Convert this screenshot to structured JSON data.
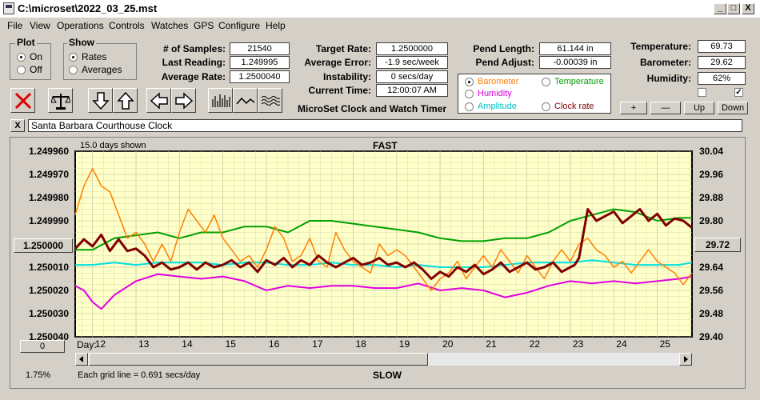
{
  "window": {
    "title": "C:\\microset\\2022_03_25.mst",
    "min": "_",
    "max": "□",
    "close": "X"
  },
  "menu": [
    "File",
    "View",
    "Operations",
    "Controls",
    "Watches",
    "GPS",
    "Configure",
    "Help"
  ],
  "plot_group": {
    "title": "Plot",
    "options": [
      "On",
      "Off"
    ],
    "selected": "On"
  },
  "show_group": {
    "title": "Show",
    "options": [
      "Rates",
      "Averages"
    ],
    "selected": "Rates"
  },
  "stats": {
    "samples_label": "# of Samples:",
    "samples": "21540",
    "last_label": "Last Reading:",
    "last": "1.249995",
    "avg_label": "Average Rate:",
    "avg": "1.2500040",
    "target_label": "Target Rate:",
    "target": "1.2500000",
    "err_label": "Average Error:",
    "err": "-1.9 sec/week",
    "inst_label": "Instability:",
    "inst": "0 secs/day",
    "time_label": "Current Time:",
    "time": "12:00:07 AM",
    "pend_label": "Pend Length:",
    "pend": "61.144 in",
    "adjust_label": "Pend Adjust:",
    "adjust": "-0.00039 in",
    "temp_label": "Temperature:",
    "temp": "69.73",
    "baro_label": "Barometer:",
    "baro": "29.62",
    "hum_label": "Humidity:",
    "hum": "62%"
  },
  "app_title": "MicroSet Clock and Watch Timer",
  "overlay": {
    "options": [
      {
        "label": "Barometer",
        "color": "#ff8000",
        "selected": true
      },
      {
        "label": "Temperature",
        "color": "#00a000",
        "selected": false
      },
      {
        "label": "Humidity",
        "color": "#e000e0",
        "selected": false
      },
      {
        "label": "Clock rate",
        "color": "#800000",
        "selected": false
      },
      {
        "label": "Amplitude",
        "color": "#00c0c0",
        "selected": false
      }
    ]
  },
  "small_buttons": {
    "plus": "+",
    "minus": "—",
    "up": "Up",
    "down": "Down"
  },
  "clock_name": "Santa Barbara Courthouse Clock",
  "close_x": "X",
  "chart_header": {
    "days_shown": "15.0 days shown",
    "fast": "FAST",
    "slow": "SLOW",
    "day_label": "Day:"
  },
  "footer": {
    "pct": "1.75%",
    "grid_note": "Each grid line = 0.691 secs/day",
    "zero_btn": "0"
  },
  "left_box": "1.250000",
  "right_box": "29.72",
  "chart_data": {
    "type": "line",
    "x_days": [
      11.6,
      25.8
    ],
    "day_ticks": [
      "12",
      "13",
      "14",
      "15",
      "16",
      "17",
      "18",
      "19",
      "20",
      "21",
      "22",
      "23",
      "24",
      "25"
    ],
    "left_axis_ticks": [
      "1.249960",
      "1.249970",
      "1.249980",
      "1.249990",
      "1.250000",
      "1.250010",
      "1.250020",
      "1.250030",
      "1.250040"
    ],
    "left_ylim": [
      1.24996,
      1.25004
    ],
    "right_axis_ticks": [
      "30.04",
      "29.96",
      "29.88",
      "29.80",
      "29.72",
      "29.64",
      "29.56",
      "29.48",
      "29.40"
    ],
    "right_ylim": [
      29.4,
      30.04
    ],
    "series": [
      {
        "color": "#ff8000",
        "x": [
          11.6,
          11.8,
          12.0,
          12.2,
          12.4,
          12.6,
          12.8,
          13.0,
          13.2,
          13.4,
          13.6,
          13.8,
          14.0,
          14.2,
          14.4,
          14.6,
          14.8,
          15.0,
          15.2,
          15.4,
          15.6,
          15.8,
          16.0,
          16.2,
          16.4,
          16.6,
          16.8,
          17.0,
          17.2,
          17.4,
          17.6,
          17.8,
          18.0,
          18.2,
          18.4,
          18.6,
          18.8,
          19.0,
          19.2,
          19.4,
          19.6,
          19.8,
          20.0,
          20.2,
          20.4,
          20.6,
          20.8,
          21.0,
          21.2,
          21.4,
          21.6,
          21.8,
          22.0,
          22.2,
          22.4,
          22.6,
          22.8,
          23.0,
          23.2,
          23.4,
          23.6,
          23.8,
          24.0,
          24.2,
          24.4,
          24.6,
          24.8,
          25.0,
          25.2,
          25.4,
          25.6,
          25.8
        ],
        "y": [
          29.82,
          29.92,
          29.98,
          29.92,
          29.9,
          29.82,
          29.74,
          29.76,
          29.72,
          29.66,
          29.72,
          29.66,
          29.76,
          29.84,
          29.8,
          29.76,
          29.82,
          29.74,
          29.7,
          29.66,
          29.68,
          29.64,
          29.7,
          29.78,
          29.74,
          29.66,
          29.68,
          29.74,
          29.66,
          29.64,
          29.76,
          29.7,
          29.66,
          29.64,
          29.62,
          29.72,
          29.68,
          29.7,
          29.68,
          29.64,
          29.6,
          29.56,
          29.6,
          29.62,
          29.66,
          29.6,
          29.64,
          29.68,
          29.64,
          29.7,
          29.66,
          29.62,
          29.68,
          29.64,
          29.6,
          29.66,
          29.7,
          29.66,
          29.72,
          29.74,
          29.7,
          29.68,
          29.64,
          29.66,
          29.62,
          29.66,
          29.7,
          29.66,
          29.64,
          29.62,
          29.58,
          29.62
        ]
      },
      {
        "color": "#00a000",
        "x": [
          11.6,
          12.0,
          12.5,
          13.0,
          13.5,
          14.0,
          14.5,
          15.0,
          15.5,
          16.0,
          16.5,
          17.0,
          17.5,
          18.0,
          18.5,
          19.0,
          19.5,
          20.0,
          20.5,
          21.0,
          21.5,
          22.0,
          22.5,
          23.0,
          23.5,
          24.0,
          24.5,
          25.0,
          25.5,
          25.8
        ],
        "y": [
          29.7,
          29.7,
          29.74,
          29.75,
          29.76,
          29.74,
          29.76,
          29.76,
          29.78,
          29.78,
          29.76,
          29.8,
          29.8,
          29.79,
          29.78,
          29.77,
          29.76,
          29.74,
          29.73,
          29.73,
          29.74,
          29.74,
          29.76,
          29.8,
          29.82,
          29.84,
          29.83,
          29.8,
          29.81,
          29.81
        ]
      },
      {
        "color": "#e000e0",
        "x": [
          11.6,
          11.8,
          12.0,
          12.2,
          12.5,
          13.0,
          13.5,
          14.0,
          14.5,
          15.0,
          15.5,
          16.0,
          16.5,
          17.0,
          17.5,
          18.0,
          18.5,
          19.0,
          19.5,
          20.0,
          20.5,
          21.0,
          21.5,
          22.0,
          22.5,
          23.0,
          23.5,
          24.0,
          24.5,
          25.0,
          25.5,
          25.8
        ],
        "y": [
          1.250018,
          1.25002,
          1.250025,
          1.250028,
          1.250022,
          1.250016,
          1.250013,
          1.250014,
          1.250015,
          1.250014,
          1.250016,
          1.25002,
          1.250018,
          1.250019,
          1.250018,
          1.250018,
          1.250019,
          1.250019,
          1.250017,
          1.25002,
          1.250019,
          1.25002,
          1.250023,
          1.250021,
          1.250018,
          1.250016,
          1.250017,
          1.250016,
          1.250017,
          1.250016,
          1.250015,
          1.250014
        ]
      },
      {
        "color": "#00e0e0",
        "x": [
          11.6,
          12.0,
          12.5,
          13.0,
          13.5,
          14.0,
          14.5,
          15.0,
          15.5,
          16.0,
          16.5,
          17.0,
          17.5,
          18.0,
          18.5,
          19.0,
          19.5,
          20.0,
          20.5,
          21.0,
          21.5,
          22.0,
          22.5,
          23.0,
          23.5,
          24.0,
          24.5,
          25.0,
          25.5,
          25.8
        ],
        "y": [
          1.250009,
          1.250009,
          1.250008,
          1.250009,
          1.250008,
          1.250008,
          1.250008,
          1.250009,
          1.250008,
          1.250008,
          1.250009,
          1.250009,
          1.250008,
          1.250009,
          1.250009,
          1.25001,
          1.250009,
          1.25001,
          1.25001,
          1.25001,
          1.250009,
          1.250008,
          1.250008,
          1.250008,
          1.250007,
          1.250008,
          1.250009,
          1.250009,
          1.250009,
          1.250008
        ]
      },
      {
        "color": "#800000",
        "x": [
          11.6,
          11.8,
          12.0,
          12.2,
          12.4,
          12.6,
          12.8,
          13.0,
          13.2,
          13.4,
          13.6,
          13.8,
          14.0,
          14.2,
          14.4,
          14.6,
          14.8,
          15.0,
          15.2,
          15.4,
          15.6,
          15.8,
          16.0,
          16.2,
          16.4,
          16.6,
          16.8,
          17.0,
          17.2,
          17.4,
          17.6,
          17.8,
          18.0,
          18.2,
          18.4,
          18.6,
          18.8,
          19.0,
          19.2,
          19.4,
          19.6,
          19.8,
          20.0,
          20.2,
          20.4,
          20.6,
          20.8,
          21.0,
          21.2,
          21.4,
          21.6,
          21.8,
          22.0,
          22.2,
          22.4,
          22.6,
          22.8,
          23.0,
          23.1,
          23.2,
          23.4,
          23.6,
          23.8,
          24.0,
          24.2,
          24.4,
          24.6,
          24.8,
          25.0,
          25.2,
          25.4,
          25.6,
          25.8
        ],
        "y": [
          1.250002,
          1.249998,
          1.250001,
          1.249996,
          1.250003,
          1.249998,
          1.250003,
          1.250002,
          1.250005,
          1.25001,
          1.250008,
          1.250011,
          1.25001,
          1.250008,
          1.250011,
          1.250008,
          1.25001,
          1.250009,
          1.250007,
          1.25001,
          1.250008,
          1.250012,
          1.250007,
          1.250009,
          1.250006,
          1.25001,
          1.250007,
          1.250009,
          1.250005,
          1.250008,
          1.25001,
          1.250008,
          1.250006,
          1.250009,
          1.250008,
          1.250006,
          1.250009,
          1.250008,
          1.25001,
          1.250008,
          1.250011,
          1.250015,
          1.250012,
          1.250014,
          1.25001,
          1.250012,
          1.250009,
          1.250013,
          1.250011,
          1.250008,
          1.250012,
          1.25001,
          1.250008,
          1.250011,
          1.25001,
          1.250008,
          1.250012,
          1.25001,
          1.250009,
          1.250006,
          1.249985,
          1.24999,
          1.249988,
          1.249986,
          1.249991,
          1.249988,
          1.249985,
          1.24999,
          1.249987,
          1.249992,
          1.249989,
          1.24999,
          1.249993
        ]
      }
    ]
  }
}
